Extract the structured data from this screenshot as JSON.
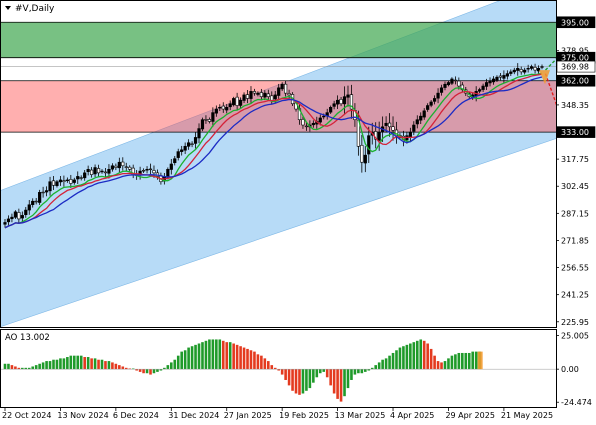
{
  "header": {
    "symbol_label": "#V,Daily"
  },
  "ao_panel": {
    "label": "AO 13.002"
  },
  "colors": {
    "channel": "#b3d9f7",
    "resistance_zone": "#3fa64f",
    "support_zone": "#ff4d4d",
    "bull_candle": "#000000",
    "ma_fast": "#1bb12e",
    "ma_mid": "#d4233a",
    "ma_slow": "#1c2bc4",
    "ao_up": "#1f9a2a",
    "ao_down": "#e43a1f",
    "arrow_up": "#1f9a2a",
    "arrow_down": "#e41b1b"
  },
  "chart_data": [
    {
      "type": "candlestick",
      "title": "",
      "xlabel": "",
      "ylabel": "",
      "ylim": [
        223.0,
        407.0
      ],
      "x_tick_labels": [
        "22 Oct 2024",
        "13 Nov 2024",
        "6 Dec 2024",
        "31 Dec 2024",
        "27 Jan 2025",
        "19 Feb 2025",
        "13 Mar 2025",
        "4 Apr 2025",
        "29 Apr 2025",
        "21 May 2025"
      ],
      "x_tick_bar_index": [
        0,
        16,
        32,
        48,
        64,
        80,
        96,
        112,
        128,
        144
      ],
      "y_tick_labels": [
        "395.00",
        "378.95",
        "375.00",
        "369.98",
        "362.00",
        "348.35",
        "333.00",
        "317.75",
        "302.45",
        "287.15",
        "271.85",
        "256.55",
        "241.25",
        "225.95"
      ],
      "y_tick_values": [
        395.0,
        378.95,
        375.0,
        369.98,
        362.0,
        348.35,
        333.0,
        317.75,
        302.45,
        287.15,
        271.85,
        256.55,
        241.25,
        225.95
      ],
      "highlighted_levels": [
        395.0,
        375.0,
        362.0,
        333.0
      ],
      "current_price": 369.98,
      "zones": [
        {
          "name": "resistance",
          "from": 375.0,
          "to": 395.0
        },
        {
          "name": "support",
          "from": 333.0,
          "to": 362.0
        }
      ],
      "channel": {
        "start_bar": 0,
        "end_bar": 160,
        "upper": [
          301.0,
          420.0
        ],
        "lower": [
          224.0,
          330.0
        ]
      },
      "arrows": [
        {
          "from_bar": 156,
          "from_price": 368.0,
          "to_bar": 162,
          "to_price": 380.0,
          "direction": "up"
        },
        {
          "from_bar": 156,
          "from_price": 366.0,
          "to_bar": 162,
          "to_price": 333.0,
          "direction": "down"
        }
      ],
      "close": [
        282,
        284,
        285,
        288,
        284,
        286,
        289,
        292,
        294,
        294,
        299,
        299,
        300,
        305,
        303,
        305,
        306,
        305,
        306,
        304,
        306,
        308,
        307,
        310,
        312,
        309,
        313,
        310,
        311,
        310,
        312,
        314,
        313,
        316,
        314,
        313,
        312,
        309,
        309,
        311,
        311,
        312,
        312,
        310,
        308,
        305,
        308,
        312,
        315,
        318,
        322,
        323,
        325,
        327,
        326,
        330,
        335,
        340,
        340,
        339,
        344,
        346,
        347,
        346,
        347,
        349,
        352,
        348,
        351,
        354,
        352,
        356,
        355,
        355,
        353,
        355,
        353,
        351,
        354,
        358,
        360,
        355,
        354,
        349,
        346,
        340,
        337,
        336,
        337,
        338,
        339,
        341,
        342,
        344,
        347,
        349,
        351,
        349,
        353,
        354,
        346,
        340,
        325,
        316,
        320,
        331,
        333,
        329,
        333,
        336,
        338,
        336,
        334,
        331,
        330,
        328,
        331,
        333,
        337,
        340,
        342,
        345,
        348,
        350,
        352,
        355,
        358,
        360,
        361,
        363,
        362,
        359,
        357,
        355,
        353,
        354,
        356,
        357,
        359,
        361,
        362,
        363,
        364,
        364,
        365,
        366,
        367,
        368,
        369,
        367,
        368,
        369,
        370,
        368,
        369,
        369.98
      ]
    },
    {
      "type": "bar",
      "title": "",
      "name": "AO",
      "current_value": 13.002,
      "ylim": [
        -28.0,
        29.0
      ],
      "y_tick_labels": [
        "25.005",
        "0.00",
        "-24.474"
      ],
      "y_tick_values": [
        25.005,
        0.0,
        -24.474
      ],
      "values": [
        4,
        4,
        3,
        2,
        1,
        1,
        1,
        1,
        2,
        3,
        4,
        5,
        6,
        6,
        7,
        7,
        8,
        8,
        9,
        10,
        10,
        10,
        10,
        9,
        9,
        8,
        8,
        7,
        7,
        6,
        6,
        5,
        4,
        3,
        2,
        1,
        0.5,
        0.5,
        -1,
        -2,
        -3,
        -3,
        -4,
        -3,
        -2,
        -1,
        1,
        3,
        5,
        7,
        10,
        13,
        14,
        16,
        17,
        18,
        19,
        20,
        21,
        22,
        22,
        22,
        22,
        21,
        20,
        20,
        19,
        18,
        17,
        16,
        15,
        14,
        13,
        11,
        10,
        8,
        6,
        3,
        1,
        -1,
        -4,
        -8,
        -12,
        -16,
        -18,
        -19,
        -18,
        -16,
        -14,
        -10,
        -6,
        -3,
        -2,
        -6,
        -12,
        -18,
        -22,
        -24,
        -20,
        -14,
        -8,
        -4,
        -3,
        -3,
        -2,
        -1,
        1,
        3,
        5,
        7,
        8,
        10,
        12,
        14,
        16,
        17,
        18,
        19,
        20,
        21,
        22,
        21,
        19,
        15,
        10,
        6,
        5,
        6,
        8,
        10,
        11,
        12,
        12,
        12,
        12,
        13,
        13,
        13.002
      ]
    }
  ]
}
